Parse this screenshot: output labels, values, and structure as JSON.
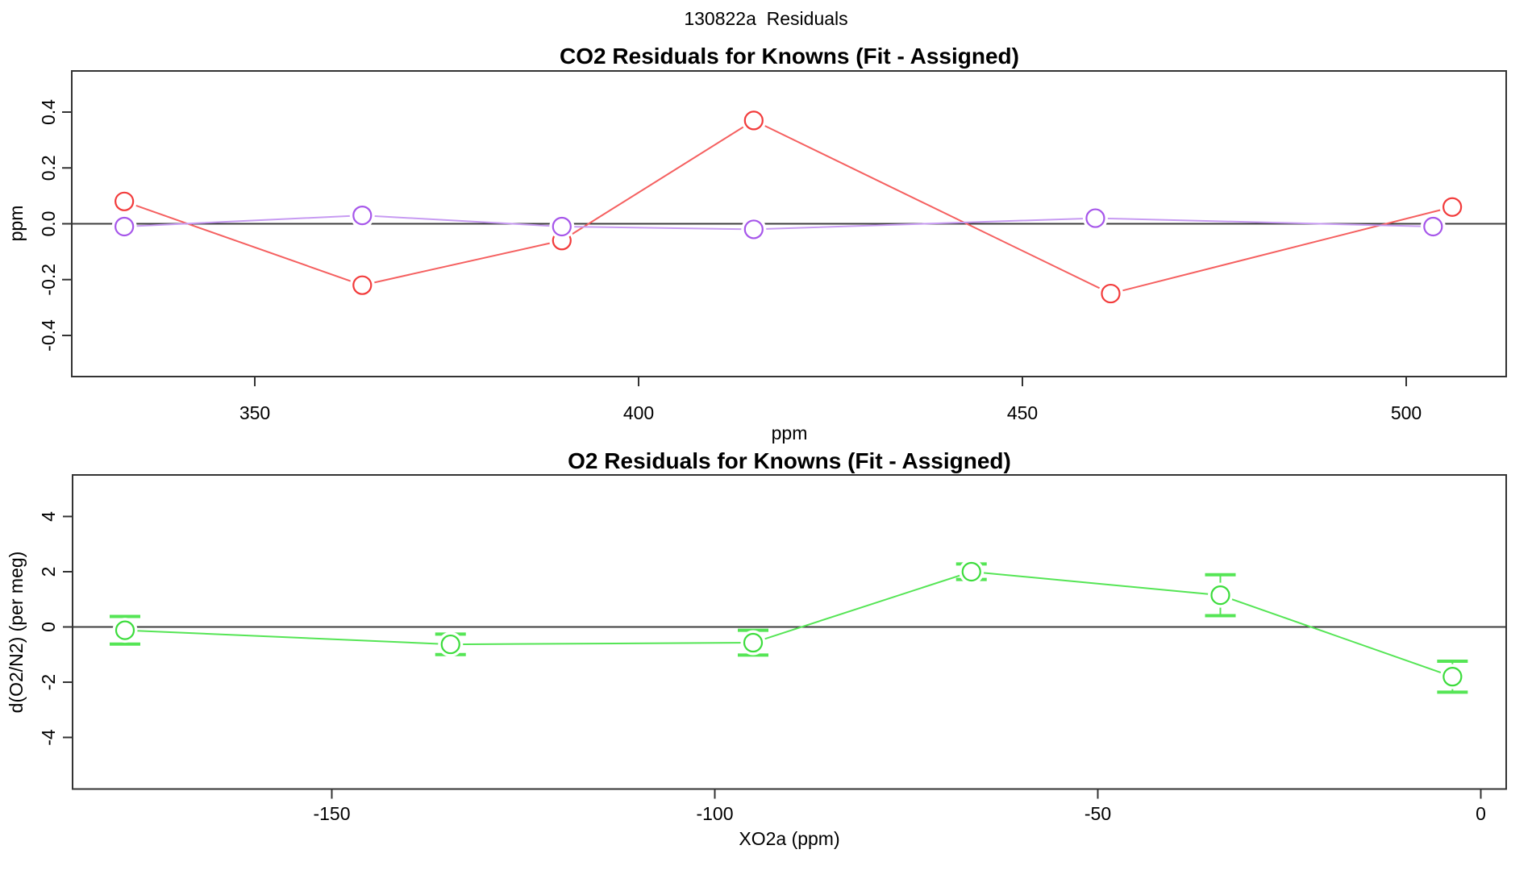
{
  "page": {
    "title": "130822a  Residuals",
    "background": "#ffffff"
  },
  "chart_data": [
    {
      "type": "line",
      "title": "CO2 Residuals for Knowns (Fit - Assigned)",
      "xlabel": "ppm",
      "ylabel": "ppm",
      "xlim": [
        326,
        513
      ],
      "ylim": [
        -0.55,
        0.55
      ],
      "xticks": [
        350,
        400,
        450,
        500
      ],
      "xtick_labels": [
        "350",
        "400",
        "450",
        "500"
      ],
      "yticks": [
        -0.4,
        -0.2,
        0.0,
        0.2,
        0.4
      ],
      "ytick_labels": [
        "-0.4",
        "-0.2",
        "0.0",
        "0.2",
        "0.4"
      ],
      "grid": false,
      "legend": "none",
      "zero_line": true,
      "zero_line_color": "#3c3c3c",
      "series": [
        {
          "name": "co2-residuals-red",
          "marker": "circle-open",
          "marker_color": "#f23b3b",
          "line_color": "#f56060",
          "x": [
            333,
            364,
            390,
            415,
            461.5,
            506
          ],
          "y": [
            0.08,
            -0.22,
            -0.06,
            0.37,
            -0.25,
            0.06
          ]
        },
        {
          "name": "co2-residuals-purple",
          "marker": "circle-open",
          "marker_color": "#a656ea",
          "line_color": "#c79bf2",
          "x": [
            333,
            364,
            390,
            415,
            459.5,
            503.5
          ],
          "y": [
            -0.01,
            0.03,
            -0.01,
            -0.02,
            0.02,
            -0.01
          ]
        }
      ]
    },
    {
      "type": "line",
      "title": "O2 Residuals for Knowns (Fit - Assigned)",
      "xlabel": "XO2a (ppm)",
      "ylabel": "d(O2/N2) (per meg)",
      "xlim": [
        -184,
        3.5
      ],
      "ylim": [
        -5.7,
        5.5
      ],
      "xticks": [
        -150,
        -100,
        -50,
        0
      ],
      "xtick_labels": [
        "-150",
        "-100",
        "-50",
        "0"
      ],
      "yticks": [
        -4,
        -2,
        0,
        2,
        4
      ],
      "ytick_labels": [
        "-4",
        "-2",
        "0",
        "2",
        "4"
      ],
      "grid": false,
      "legend": "none",
      "zero_line": true,
      "zero_line_color": "#3c3c3c",
      "series": [
        {
          "name": "o2-residuals-green",
          "marker": "circle-open",
          "marker_color": "#3cdc3c",
          "line_color": "#55e555",
          "x": [
            -177,
            -134.5,
            -95,
            -66.5,
            -34,
            -3.7
          ],
          "y": [
            -0.12,
            -0.63,
            -0.57,
            2.0,
            1.15,
            -1.8
          ],
          "yerr": [
            0.5,
            0.37,
            0.45,
            0.28,
            0.74,
            0.56
          ]
        }
      ]
    }
  ]
}
